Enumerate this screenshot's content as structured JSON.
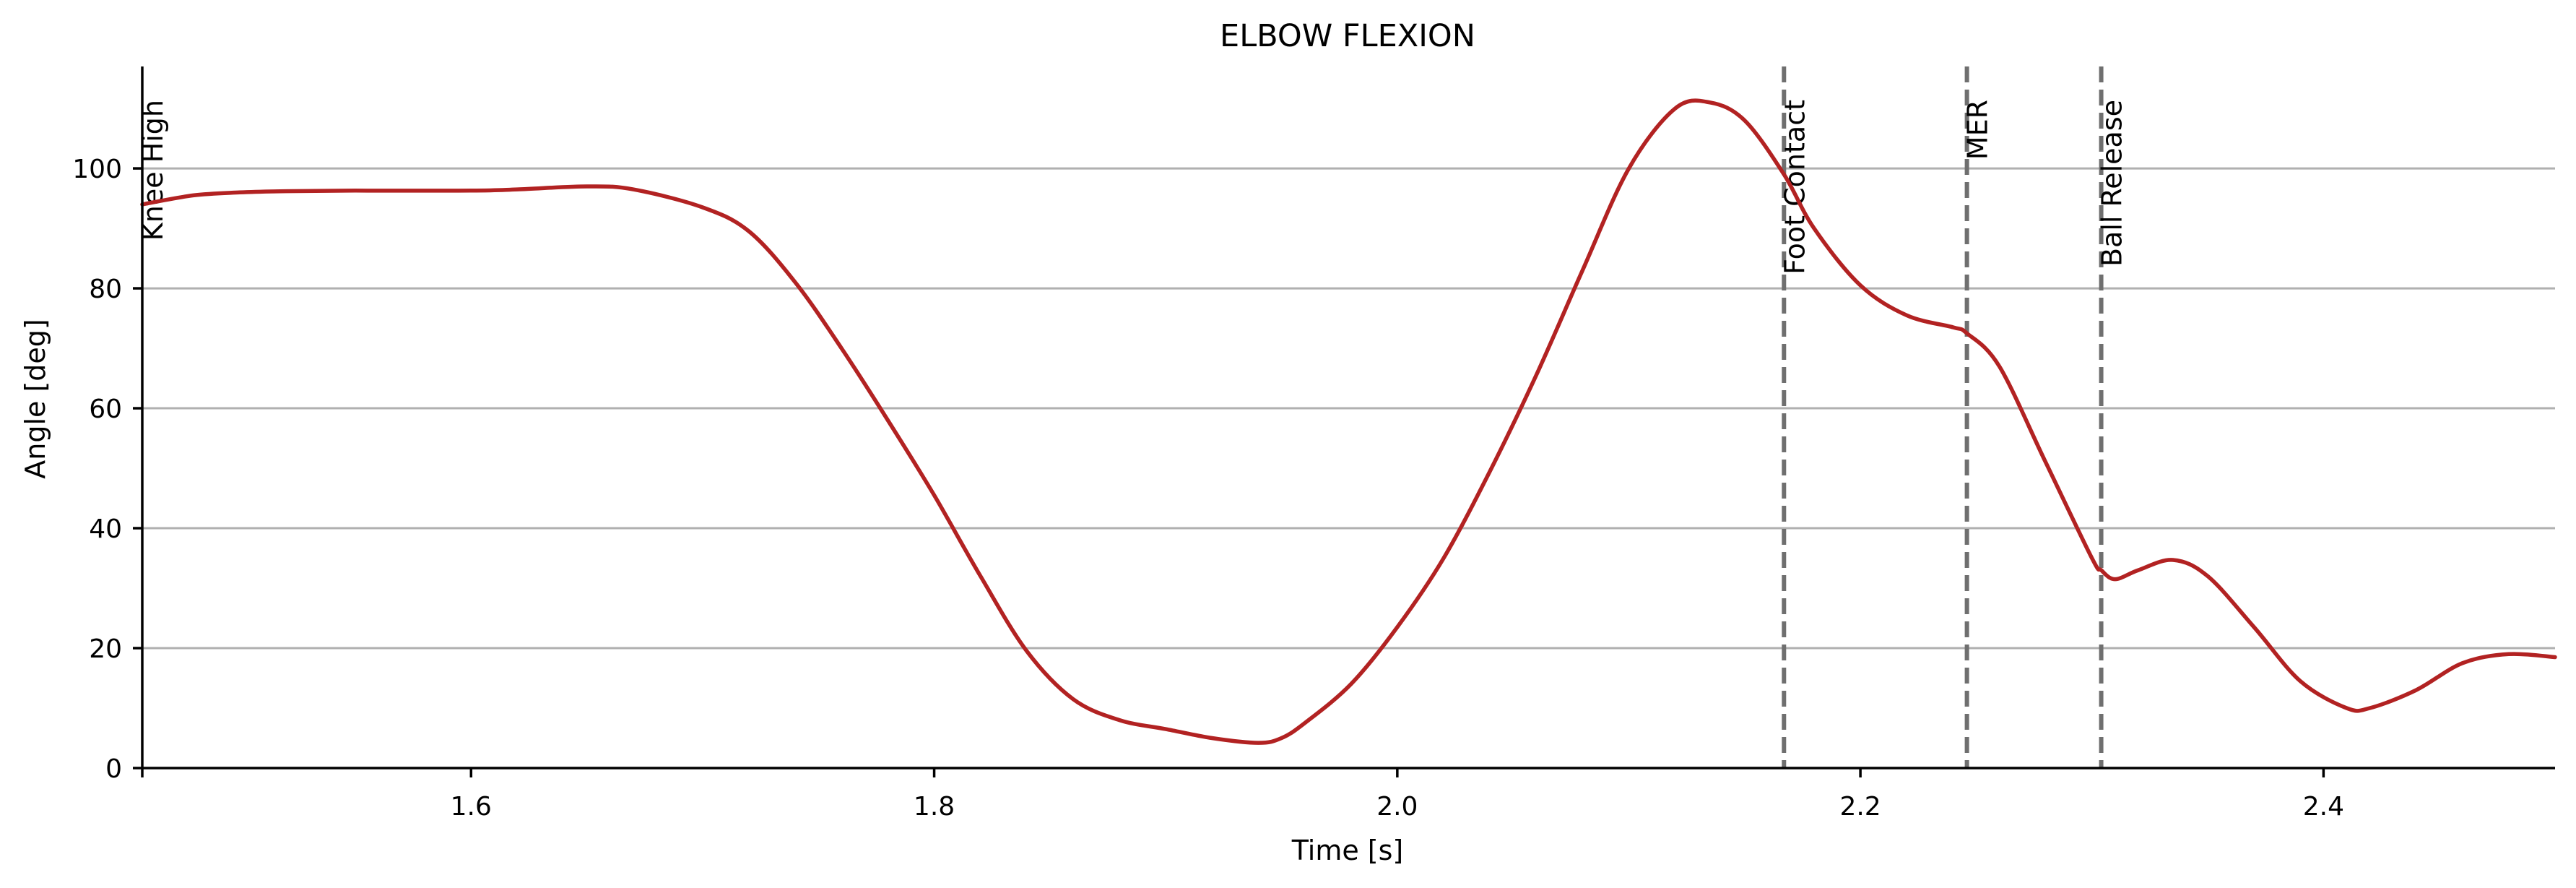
{
  "chart_data": {
    "type": "line",
    "title": "ELBOW FLEXION",
    "xlabel": "Time [s]",
    "ylabel": "Angle [deg]",
    "xlim": [
      1.458,
      2.5
    ],
    "ylim": [
      0,
      117
    ],
    "xticks": [
      1.6,
      1.8,
      2.0,
      2.2,
      2.4
    ],
    "xtick_labels": [
      "1.6",
      "1.8",
      "2.0",
      "2.2",
      "2.4"
    ],
    "yticks": [
      0,
      20,
      40,
      60,
      80,
      100
    ],
    "ytick_labels": [
      "0",
      "20",
      "40",
      "60",
      "80",
      "100"
    ],
    "grid": "horizontal",
    "color": "#b22222",
    "events": [
      {
        "label": "Knee High",
        "x": 1.458
      },
      {
        "label": "Foot Contact",
        "x": 2.167
      },
      {
        "label": "MER",
        "x": 2.246
      },
      {
        "label": "Ball Release",
        "x": 2.304
      }
    ],
    "series": [
      {
        "x": [
          1.458,
          1.48,
          1.5,
          1.52,
          1.55,
          1.6,
          1.62,
          1.65,
          1.67,
          1.7,
          1.72,
          1.74,
          1.76,
          1.78,
          1.8,
          1.82,
          1.84,
          1.86,
          1.88,
          1.9,
          1.92,
          1.94,
          1.95,
          1.96,
          1.98,
          2.0,
          2.02,
          2.04,
          2.06,
          2.08,
          2.1,
          2.12,
          2.135,
          2.15,
          2.167,
          2.18,
          2.2,
          2.22,
          2.24,
          2.246,
          2.26,
          2.28,
          2.3,
          2.304,
          2.31,
          2.32,
          2.335,
          2.35,
          2.37,
          2.39,
          2.41,
          2.42,
          2.44,
          2.46,
          2.48,
          2.5
        ],
        "y": [
          94.0,
          95.5,
          96.0,
          96.2,
          96.3,
          96.3,
          96.5,
          97.0,
          96.5,
          93.5,
          89.5,
          81.0,
          70.0,
          58.0,
          45.5,
          32.0,
          19.5,
          11.5,
          8.0,
          6.5,
          5.0,
          4.2,
          5.0,
          7.5,
          14.0,
          23.5,
          35.0,
          49.5,
          65.5,
          83.0,
          100.0,
          110.0,
          111.0,
          108.0,
          99.0,
          90.0,
          80.5,
          75.5,
          73.5,
          72.5,
          67.0,
          51.0,
          35.0,
          33.0,
          31.5,
          33.0,
          34.7,
          32.0,
          23.5,
          14.5,
          10.0,
          10.0,
          13.0,
          17.5,
          19.0,
          18.5
        ]
      }
    ]
  }
}
